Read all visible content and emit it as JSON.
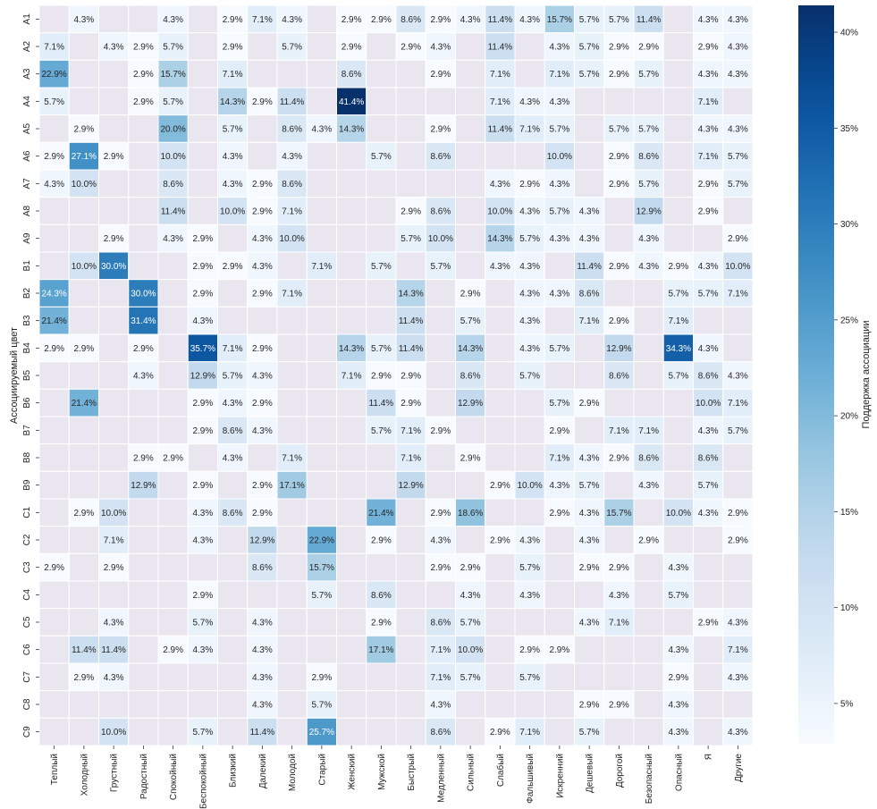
{
  "chart_data": {
    "type": "heatmap",
    "ylabel": "Ассоциируемый цвет",
    "colorbar_label": "Поддержка ассоциации",
    "colormap": "Blues",
    "empty_cell_color": "#eae6f0",
    "grid_color": "#ffffff",
    "value_range": [
      2.9,
      41.4
    ],
    "colorbar_ticks": [
      "5%",
      "10%",
      "15%",
      "20%",
      "25%",
      "30%",
      "35%",
      "40%"
    ],
    "colorbar_tick_values": [
      5,
      10,
      15,
      20,
      25,
      30,
      35,
      40
    ],
    "columns": [
      "Теплый",
      "Холодный",
      "Грустный",
      "Радостный",
      "Спокойный",
      "Беспокойный",
      "Близкий",
      "Далекий",
      "Молодой",
      "Старый",
      "Женский",
      "Мужской",
      "Быстрый",
      "Медленный",
      "Сильный",
      "Слабый",
      "Фальшивый",
      "Искренний",
      "Дешевый",
      "Дорогой",
      "Безопасный",
      "Опасный",
      "Я",
      "Другие"
    ],
    "rows": [
      "A1",
      "A2",
      "A3",
      "A4",
      "A5",
      "A6",
      "A7",
      "A8",
      "A9",
      "B1",
      "B2",
      "B3",
      "B4",
      "B5",
      "B6",
      "B7",
      "B8",
      "B9",
      "C1",
      "C2",
      "C3",
      "C4",
      "C5",
      "C6",
      "C7",
      "C8",
      "C9"
    ],
    "values": [
      [
        null,
        4.3,
        null,
        null,
        4.3,
        null,
        2.9,
        7.1,
        4.3,
        null,
        2.9,
        2.9,
        8.6,
        2.9,
        4.3,
        11.4,
        4.3,
        15.7,
        5.7,
        5.7,
        11.4,
        null,
        4.3,
        4.3
      ],
      [
        7.1,
        null,
        4.3,
        2.9,
        5.7,
        null,
        2.9,
        null,
        5.7,
        null,
        2.9,
        null,
        2.9,
        4.3,
        null,
        11.4,
        null,
        4.3,
        5.7,
        2.9,
        2.9,
        null,
        2.9,
        4.3
      ],
      [
        22.9,
        null,
        null,
        2.9,
        15.7,
        null,
        7.1,
        null,
        null,
        null,
        8.6,
        null,
        null,
        2.9,
        null,
        7.1,
        null,
        7.1,
        5.7,
        2.9,
        5.7,
        null,
        4.3,
        4.3
      ],
      [
        5.7,
        null,
        null,
        2.9,
        5.7,
        null,
        14.3,
        2.9,
        11.4,
        null,
        41.4,
        null,
        null,
        null,
        null,
        7.1,
        4.3,
        4.3,
        null,
        null,
        null,
        null,
        7.1,
        null
      ],
      [
        null,
        2.9,
        null,
        null,
        20.0,
        null,
        5.7,
        null,
        8.6,
        4.3,
        14.3,
        null,
        null,
        2.9,
        null,
        11.4,
        7.1,
        5.7,
        null,
        5.7,
        5.7,
        null,
        4.3,
        4.3
      ],
      [
        2.9,
        27.1,
        2.9,
        null,
        10.0,
        null,
        4.3,
        null,
        4.3,
        null,
        null,
        5.7,
        null,
        8.6,
        null,
        null,
        null,
        10.0,
        null,
        2.9,
        8.6,
        null,
        7.1,
        5.7
      ],
      [
        4.3,
        10.0,
        null,
        null,
        8.6,
        null,
        4.3,
        2.9,
        8.6,
        null,
        null,
        null,
        null,
        null,
        null,
        4.3,
        2.9,
        4.3,
        null,
        2.9,
        5.7,
        null,
        2.9,
        5.7
      ],
      [
        null,
        null,
        null,
        null,
        11.4,
        null,
        10.0,
        2.9,
        7.1,
        null,
        null,
        null,
        2.9,
        8.6,
        null,
        10.0,
        4.3,
        5.7,
        4.3,
        null,
        12.9,
        null,
        2.9,
        null
      ],
      [
        null,
        null,
        2.9,
        null,
        4.3,
        2.9,
        null,
        4.3,
        10.0,
        null,
        null,
        null,
        5.7,
        10.0,
        null,
        14.3,
        5.7,
        4.3,
        4.3,
        null,
        4.3,
        null,
        null,
        2.9
      ],
      [
        null,
        10.0,
        30.0,
        null,
        null,
        2.9,
        2.9,
        4.3,
        null,
        7.1,
        null,
        5.7,
        null,
        5.7,
        null,
        4.3,
        4.3,
        null,
        11.4,
        2.9,
        4.3,
        2.9,
        4.3,
        10.0
      ],
      [
        24.3,
        null,
        null,
        30.0,
        null,
        2.9,
        null,
        2.9,
        7.1,
        null,
        null,
        null,
        14.3,
        null,
        2.9,
        null,
        4.3,
        4.3,
        8.6,
        null,
        null,
        5.7,
        5.7,
        7.1
      ],
      [
        21.4,
        null,
        null,
        31.4,
        null,
        4.3,
        null,
        null,
        null,
        null,
        null,
        null,
        11.4,
        null,
        5.7,
        null,
        4.3,
        null,
        7.1,
        2.9,
        null,
        7.1,
        null,
        null
      ],
      [
        2.9,
        2.9,
        null,
        2.9,
        null,
        35.7,
        7.1,
        2.9,
        null,
        null,
        14.3,
        5.7,
        11.4,
        null,
        14.3,
        null,
        4.3,
        5.7,
        null,
        12.9,
        null,
        34.3,
        4.3,
        null
      ],
      [
        null,
        null,
        null,
        4.3,
        null,
        12.9,
        5.7,
        4.3,
        null,
        null,
        7.1,
        2.9,
        2.9,
        null,
        8.6,
        null,
        5.7,
        null,
        null,
        8.6,
        null,
        5.7,
        8.6,
        4.3
      ],
      [
        null,
        21.4,
        null,
        null,
        null,
        2.9,
        4.3,
        2.9,
        null,
        null,
        null,
        11.4,
        2.9,
        null,
        12.9,
        null,
        null,
        5.7,
        2.9,
        null,
        null,
        null,
        10.0,
        7.1
      ],
      [
        null,
        null,
        null,
        null,
        null,
        2.9,
        8.6,
        4.3,
        null,
        null,
        null,
        5.7,
        7.1,
        2.9,
        null,
        null,
        null,
        2.9,
        null,
        7.1,
        7.1,
        null,
        4.3,
        5.7
      ],
      [
        null,
        null,
        null,
        2.9,
        2.9,
        null,
        4.3,
        null,
        7.1,
        null,
        null,
        null,
        7.1,
        null,
        2.9,
        null,
        null,
        7.1,
        4.3,
        2.9,
        8.6,
        null,
        8.6,
        null
      ],
      [
        null,
        null,
        null,
        12.9,
        null,
        2.9,
        null,
        2.9,
        17.1,
        null,
        null,
        null,
        12.9,
        null,
        null,
        2.9,
        10.0,
        4.3,
        5.7,
        null,
        4.3,
        null,
        5.7,
        null
      ],
      [
        null,
        2.9,
        10.0,
        null,
        null,
        4.3,
        8.6,
        2.9,
        null,
        null,
        null,
        21.4,
        null,
        2.9,
        18.6,
        null,
        null,
        2.9,
        4.3,
        15.7,
        null,
        10.0,
        4.3,
        2.9
      ],
      [
        null,
        null,
        7.1,
        null,
        null,
        4.3,
        null,
        12.9,
        null,
        22.9,
        null,
        2.9,
        null,
        4.3,
        null,
        2.9,
        4.3,
        null,
        4.3,
        null,
        2.9,
        null,
        null,
        2.9
      ],
      [
        2.9,
        null,
        2.9,
        null,
        null,
        null,
        null,
        8.6,
        null,
        15.7,
        null,
        null,
        null,
        2.9,
        2.9,
        null,
        5.7,
        null,
        2.9,
        2.9,
        null,
        4.3,
        null,
        null
      ],
      [
        null,
        null,
        null,
        null,
        null,
        2.9,
        null,
        null,
        null,
        5.7,
        null,
        8.6,
        null,
        null,
        4.3,
        null,
        4.3,
        null,
        null,
        4.3,
        null,
        5.7,
        null,
        null
      ],
      [
        null,
        null,
        4.3,
        null,
        null,
        5.7,
        null,
        4.3,
        null,
        null,
        null,
        2.9,
        null,
        8.6,
        5.7,
        null,
        null,
        null,
        4.3,
        7.1,
        null,
        null,
        2.9,
        4.3
      ],
      [
        null,
        11.4,
        11.4,
        null,
        2.9,
        4.3,
        null,
        4.3,
        null,
        null,
        null,
        17.1,
        null,
        7.1,
        10.0,
        null,
        2.9,
        2.9,
        null,
        null,
        null,
        4.3,
        null,
        7.1
      ],
      [
        null,
        2.9,
        4.3,
        null,
        null,
        null,
        null,
        4.3,
        null,
        2.9,
        null,
        null,
        null,
        7.1,
        5.7,
        null,
        5.7,
        null,
        null,
        null,
        null,
        2.9,
        null,
        4.3
      ],
      [
        null,
        null,
        null,
        null,
        null,
        null,
        null,
        4.3,
        null,
        5.7,
        null,
        null,
        null,
        4.3,
        null,
        null,
        null,
        null,
        2.9,
        2.9,
        null,
        4.3,
        null,
        null
      ],
      [
        null,
        null,
        10.0,
        null,
        null,
        5.7,
        null,
        11.4,
        null,
        25.7,
        null,
        null,
        null,
        8.6,
        null,
        2.9,
        7.1,
        null,
        5.7,
        null,
        null,
        4.3,
        null,
        4.3
      ]
    ]
  }
}
